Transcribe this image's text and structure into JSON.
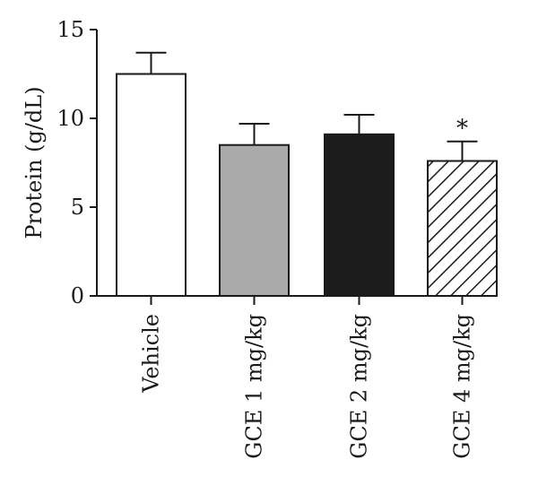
{
  "chart_data": {
    "type": "bar",
    "title": "",
    "xlabel": "",
    "ylabel": "Protein (g/dL)",
    "ylim": [
      0,
      15
    ],
    "yticks": [
      0,
      5,
      10,
      15
    ],
    "ytick_labels": [
      "0",
      "5",
      "10",
      "15"
    ],
    "grid": false,
    "categories": [
      "Vehicle",
      "GCE 1 mg/kg",
      "GCE 2 mg/kg",
      "GCE 4 mg/kg"
    ],
    "values": [
      12.5,
      8.5,
      9.1,
      7.6
    ],
    "errors": [
      1.2,
      1.2,
      1.1,
      1.1
    ],
    "annotations": [
      "",
      "",
      "",
      "*"
    ],
    "fills": [
      "#ffffff",
      "#aaaaaa",
      "#1c1c1c",
      "hatch"
    ]
  }
}
